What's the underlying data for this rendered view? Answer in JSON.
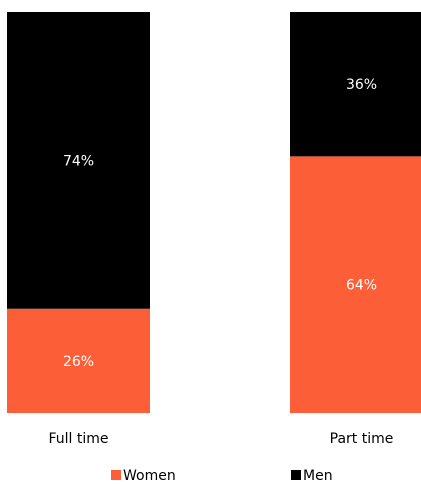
{
  "chart_data": {
    "type": "bar",
    "stacked": true,
    "percent": true,
    "categories": [
      "Full time",
      "Part time"
    ],
    "series": [
      {
        "name": "Women",
        "values": [
          26,
          64
        ],
        "labels": [
          "26%",
          "64%"
        ],
        "color": "#fc5f37"
      },
      {
        "name": "Men",
        "values": [
          74,
          36
        ],
        "labels": [
          "74%",
          "36%"
        ],
        "color": "#000000"
      }
    ],
    "ylim": [
      0,
      100
    ],
    "grid": false,
    "legend": "bottom"
  }
}
